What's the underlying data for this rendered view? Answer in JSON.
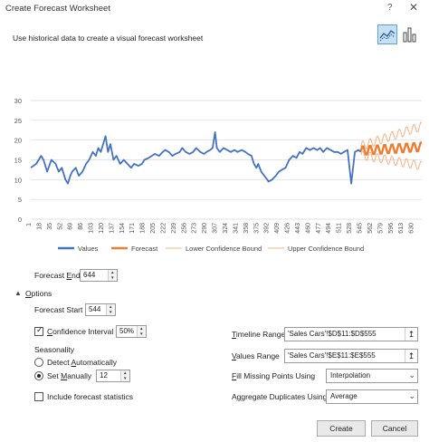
{
  "window": {
    "title": "Create Forecast Worksheet",
    "help": "?",
    "close": "✕"
  },
  "description": "Use historical data to create a visual forecast worksheet",
  "chart_types": {
    "line": "line-chart-icon",
    "column": "column-chart-icon"
  },
  "chart_data": {
    "type": "line",
    "yticks": [
      "0",
      "5",
      "10",
      "15",
      "20",
      "25",
      "30"
    ],
    "ylim": [
      0,
      30
    ],
    "xlim": [
      1,
      644
    ],
    "xticks": [
      "1",
      "18",
      "35",
      "52",
      "69",
      "86",
      "103",
      "120",
      "137",
      "154",
      "171",
      "188",
      "205",
      "222",
      "239",
      "256",
      "273",
      "290",
      "307",
      "324",
      "341",
      "358",
      "375",
      "392",
      "409",
      "426",
      "443",
      "460",
      "477",
      "494",
      "511",
      "528",
      "545",
      "562",
      "579",
      "596",
      "613",
      "630"
    ],
    "values_x": [
      1,
      10,
      18,
      22,
      28,
      35,
      42,
      47,
      52,
      58,
      62,
      66,
      69,
      75,
      80,
      86,
      92,
      97,
      103,
      108,
      112,
      116,
      120,
      124,
      128,
      132,
      137,
      142,
      148,
      154,
      160,
      166,
      171,
      178,
      184,
      188,
      195,
      200,
      205,
      212,
      218,
      222,
      228,
      234,
      239,
      246,
      250,
      256,
      262,
      268,
      273,
      280,
      286,
      290,
      296,
      300,
      304,
      307,
      312,
      318,
      324,
      330,
      336,
      341,
      348,
      354,
      358,
      364,
      368,
      372,
      375,
      380,
      385,
      390,
      392,
      398,
      404,
      409,
      414,
      420,
      426,
      432,
      438,
      443,
      448,
      454,
      460,
      466,
      472,
      477,
      482,
      488,
      494,
      500,
      506,
      511,
      516,
      522,
      528,
      534,
      540,
      544
    ],
    "values_y": [
      13,
      14,
      16,
      15,
      12,
      15,
      14,
      12,
      13,
      10,
      9,
      11,
      12,
      13,
      11,
      12,
      14,
      15,
      17,
      16,
      18,
      17,
      19,
      21,
      17,
      19,
      15,
      16,
      14,
      15,
      14,
      13,
      14,
      13.5,
      14,
      15,
      15.5,
      16,
      16.5,
      16,
      17,
      17.5,
      17,
      16,
      16.5,
      17,
      18,
      17,
      16.5,
      17,
      18,
      17,
      16.5,
      17,
      17.5,
      18,
      22,
      18,
      17,
      18,
      17.5,
      17,
      17.5,
      17,
      17.5,
      17,
      16.5,
      16,
      14,
      13,
      14,
      12,
      11,
      10,
      9.5,
      10,
      11,
      12,
      12.5,
      13,
      15,
      16,
      15.5,
      17,
      16.5,
      18,
      17.5,
      18,
      17.5,
      18,
      17,
      18,
      17.5,
      17,
      17,
      16.5,
      17,
      17.5,
      9,
      17,
      17.5,
      17
    ],
    "forecast": {
      "start": 544,
      "end": 644,
      "base": 17.3,
      "trend_end": 18.3,
      "amplitude": 1.2,
      "period": 12,
      "upper_start": 18.5,
      "upper_end": 23.5,
      "lower_start": 16.2,
      "lower_end": 13.5
    },
    "series": [
      {
        "name": "Values",
        "color": "#4472c4"
      },
      {
        "name": "Forecast",
        "color": "#ed7d31"
      },
      {
        "name": "Lower Confidence Bound",
        "color": "#f4b183"
      },
      {
        "name": "Upper Confidence Bound",
        "color": "#f4b183"
      }
    ],
    "grid": true,
    "legend": "bottom"
  },
  "forecast_end": {
    "label": "Forecast End",
    "underline": "E",
    "value": "644"
  },
  "options": {
    "toggle": "▲",
    "label": "Options",
    "underline": "O"
  },
  "forecast_start": {
    "label": "Forecast Start",
    "value": "544"
  },
  "confidence": {
    "label": "Confidence Interval",
    "underline": "C",
    "checked": true,
    "value": "50%"
  },
  "seasonality": {
    "label": "Seasonality",
    "detect": "Detect Automatically",
    "detect_underline": "A",
    "manual": "Set Manually",
    "manual_underline": "M",
    "value": "12"
  },
  "include_stats": {
    "label": "Include forecast statistics",
    "checked": false
  },
  "timeline_range": {
    "label": "Timeline Range",
    "underline": "T",
    "value": "'Sales Cars'!$D$11:$D$555"
  },
  "values_range": {
    "label": "Values Range",
    "underline": "V",
    "value": "'Sales Cars'!$E$11:$E$555"
  },
  "fill_missing": {
    "label": "Fill Missing Points Using",
    "underline": "F",
    "value": "Interpolation"
  },
  "aggregate": {
    "label": "Aggregate Duplicates Using",
    "underline": "g",
    "value": "Average"
  },
  "buttons": {
    "create": "Create",
    "cancel": "Cancel"
  }
}
